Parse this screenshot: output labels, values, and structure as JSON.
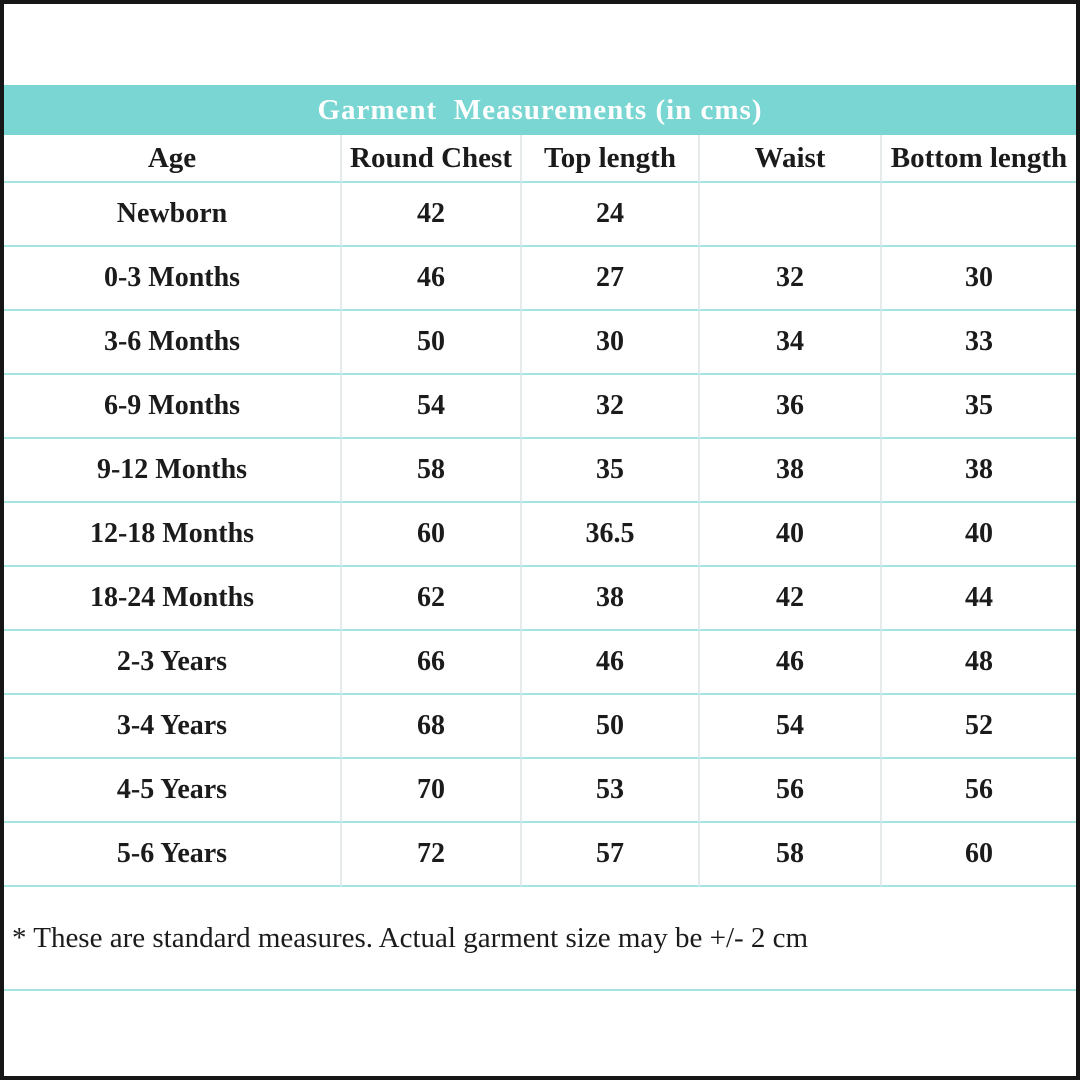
{
  "title": {
    "text": "Garment  Measurements (in cms)"
  },
  "footnote": {
    "text": "* These are standard measures. Actual garment size may be +/- 2 cm"
  },
  "colors": {
    "title_band_background": "#7ad6d2",
    "title_text": "#ffffff",
    "row_divider": "#a3e5e5",
    "column_divider": "#e6eaea",
    "page_border": "#161616",
    "body_text": "#1b1b1b"
  },
  "chart_data": {
    "type": "table",
    "title": "Garment  Measurements (in cms)",
    "columns": [
      "Age",
      "Round Chest",
      "Top length",
      "Waist",
      "Bottom length"
    ],
    "rows": [
      [
        "Newborn",
        "42",
        "24",
        "",
        ""
      ],
      [
        "0-3 Months",
        "46",
        "27",
        "32",
        "30"
      ],
      [
        "3-6 Months",
        "50",
        "30",
        "34",
        "33"
      ],
      [
        "6-9 Months",
        "54",
        "32",
        "36",
        "35"
      ],
      [
        "9-12 Months",
        "58",
        "35",
        "38",
        "38"
      ],
      [
        "12-18 Months",
        "60",
        "36.5",
        "40",
        "40"
      ],
      [
        "18-24 Months",
        "62",
        "38",
        "42",
        "44"
      ],
      [
        "2-3 Years",
        "66",
        "46",
        "46",
        "48"
      ],
      [
        "3-4 Years",
        "68",
        "50",
        "54",
        "52"
      ],
      [
        "4-5 Years",
        "70",
        "53",
        "56",
        "56"
      ],
      [
        "5-6 Years",
        "72",
        "57",
        "58",
        "60"
      ]
    ],
    "footnote": "* These are standard measures. Actual garment size may be +/- 2 cm",
    "layout": {
      "grid": true,
      "header_background": "#ffffff",
      "title_background": "#7ad6d2"
    }
  }
}
